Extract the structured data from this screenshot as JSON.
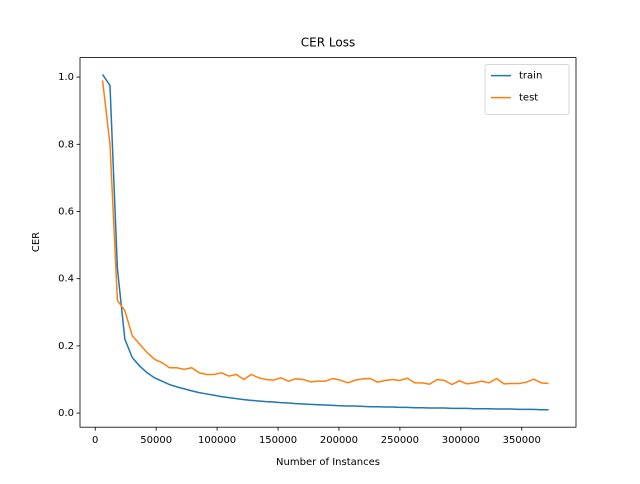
{
  "chart_data": {
    "type": "line",
    "title": "CER Loss",
    "xlabel": "Number of Instances",
    "ylabel": "CER",
    "x": [
      6000,
      12100,
      18200,
      24300,
      30400,
      36500,
      42600,
      48700,
      54800,
      60900,
      67000,
      73100,
      79200,
      85300,
      91400,
      97500,
      103600,
      109700,
      115800,
      121900,
      128000,
      134100,
      140200,
      146300,
      152400,
      158500,
      164600,
      170700,
      176800,
      182900,
      189000,
      195100,
      201200,
      207300,
      213400,
      219500,
      225600,
      231700,
      237800,
      243900,
      250000,
      256100,
      262200,
      268300,
      274400,
      280500,
      286600,
      292700,
      298800,
      304900,
      311000,
      317100,
      323200,
      329300,
      335400,
      341500,
      347600,
      353700,
      359800,
      365900,
      372000
    ],
    "series": [
      {
        "name": "train",
        "color": "#1f77b4",
        "values": [
          1.008,
          0.975,
          0.43,
          0.22,
          0.165,
          0.14,
          0.12,
          0.105,
          0.095,
          0.085,
          0.078,
          0.072,
          0.066,
          0.061,
          0.057,
          0.053,
          0.049,
          0.046,
          0.043,
          0.04,
          0.038,
          0.036,
          0.034,
          0.033,
          0.031,
          0.03,
          0.028,
          0.027,
          0.026,
          0.025,
          0.024,
          0.023,
          0.022,
          0.021,
          0.021,
          0.02,
          0.019,
          0.019,
          0.018,
          0.018,
          0.017,
          0.017,
          0.016,
          0.016,
          0.015,
          0.015,
          0.015,
          0.014,
          0.014,
          0.014,
          0.013,
          0.013,
          0.013,
          0.012,
          0.012,
          0.012,
          0.011,
          0.011,
          0.011,
          0.01,
          0.01
        ]
      },
      {
        "name": "test",
        "color": "#ff7f0e",
        "values": [
          0.99,
          0.8,
          0.335,
          0.305,
          0.23,
          0.205,
          0.18,
          0.16,
          0.15,
          0.135,
          0.135,
          0.13,
          0.135,
          0.12,
          0.115,
          0.115,
          0.12,
          0.11,
          0.115,
          0.1,
          0.115,
          0.105,
          0.1,
          0.098,
          0.105,
          0.095,
          0.102,
          0.1,
          0.093,
          0.095,
          0.095,
          0.103,
          0.098,
          0.09,
          0.098,
          0.102,
          0.103,
          0.092,
          0.097,
          0.1,
          0.097,
          0.104,
          0.09,
          0.09,
          0.086,
          0.1,
          0.097,
          0.085,
          0.096,
          0.087,
          0.09,
          0.095,
          0.09,
          0.103,
          0.087,
          0.088,
          0.088,
          0.092,
          0.101,
          0.09,
          0.088
        ]
      }
    ],
    "xlim": [
      -12500,
      394500
    ],
    "ylim": [
      -0.042,
      1.058
    ],
    "xticks": [
      0,
      50000,
      100000,
      150000,
      200000,
      250000,
      300000,
      350000
    ],
    "yticks": [
      {
        "value": 0,
        "label": "0.0"
      },
      0.2,
      0.4,
      0.6,
      0.8,
      {
        "value": 1,
        "label": "1.0"
      }
    ],
    "legend": "upper right"
  }
}
